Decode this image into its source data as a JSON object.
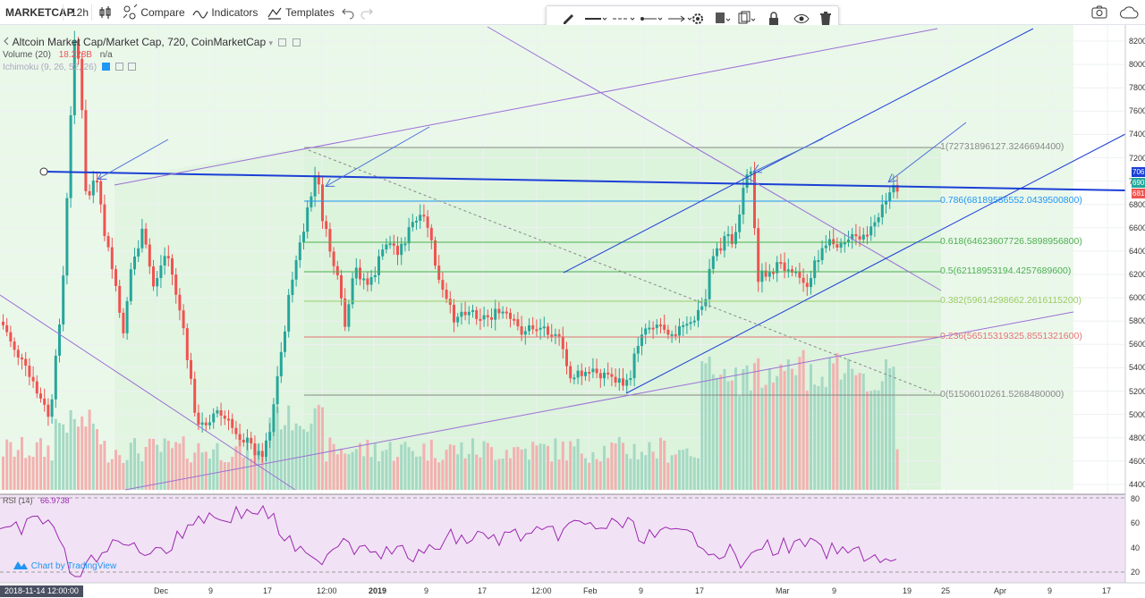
{
  "toolbar": {
    "symbol": "MARKETCAP",
    "interval": "12h",
    "compare_label": "Compare",
    "indicators_label": "Indicators",
    "templates_label": "Templates"
  },
  "legend": {
    "main": "Altcoin Market Cap/Market Cap, 720, CoinMarketCap",
    "volume_label": "Volume (20)",
    "volume_value": "18.228B",
    "volume_value2": "n/a",
    "ichimoku_label": "Ichimoku (9, 26, 52, 26)",
    "rsi_label": "RSI (14)",
    "rsi_value": "66.9738"
  },
  "watermark": "Chart by TradingView",
  "price_axis": {
    "ticks": [
      "8200",
      "8000",
      "7800",
      "7600",
      "7400",
      "7200",
      "7000",
      "6800",
      "6600",
      "6400",
      "6200",
      "6000",
      "5800",
      "5600",
      "5400",
      "5200",
      "5000",
      "4800",
      "4600",
      "4400"
    ],
    "tags": [
      "706",
      "690",
      "681"
    ]
  },
  "rsi_axis": {
    "ticks": [
      "80",
      "60",
      "40",
      "20"
    ]
  },
  "time_axis": {
    "cursor_label": "2018-11-14 12:00:00",
    "labels": [
      "Dec",
      "9",
      "17",
      "12:00",
      "2019",
      "9",
      "17",
      "12:00",
      "Feb",
      "9",
      "17",
      "Mar",
      "9",
      "19",
      "25",
      "Apr",
      "9",
      "17"
    ]
  },
  "fib_levels": [
    {
      "label": "1(72731896127.3246694400)"
    },
    {
      "label": "0.786(68189586552.0439500800)"
    },
    {
      "label": "0.618(64623607726.5898956800)"
    },
    {
      "label": "0.5(62118953194.4257689600)"
    },
    {
      "label": "0.382(59614298662.2616115200)"
    },
    {
      "label": "0.236(56515319325.8551321600)"
    },
    {
      "label": "0(51506010261.5268480000)"
    }
  ],
  "colors": {
    "up": "#26a69a",
    "down": "#ef5350",
    "trend_blue": "#1b3fd6",
    "channel_purple": "#9c6fd6",
    "fib_zone": "#d7f4d7",
    "rsi_bg": "#f1e3f5",
    "rsi_line": "#9c27b0"
  }
}
